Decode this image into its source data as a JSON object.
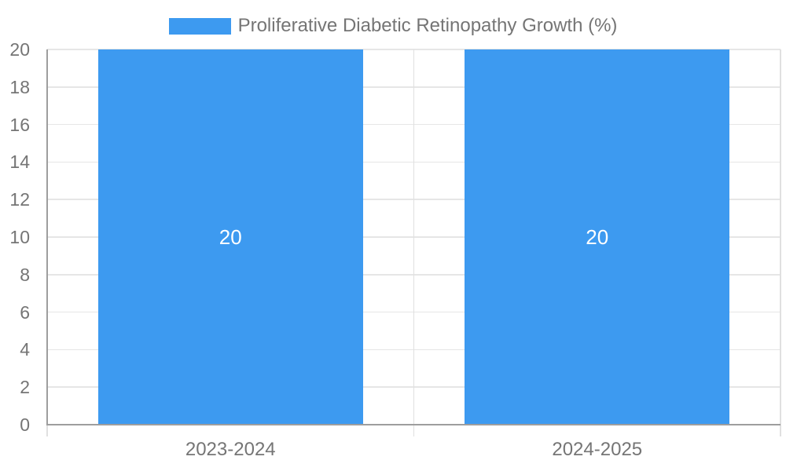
{
  "chart_data": {
    "type": "bar",
    "title": "Proliferative Diabetic Retinopathy Growth (%)",
    "legend": {
      "position": "top-center",
      "entries": [
        {
          "label": "Proliferative Diabetic Retinopathy Growth (%)",
          "color": "#3d9af0"
        }
      ]
    },
    "categories": [
      "2023-2024",
      "2024-2025"
    ],
    "series": [
      {
        "name": "Proliferative Diabetic Retinopathy Growth (%)",
        "values": [
          20,
          20
        ]
      }
    ],
    "data_labels": [
      "20",
      "20"
    ],
    "xlabel": "",
    "ylabel": "",
    "ylim": [
      0,
      20
    ],
    "yticks": [
      0,
      2,
      4,
      6,
      8,
      10,
      12,
      14,
      16,
      18,
      20
    ],
    "grid": true,
    "colors": {
      "bar": "#3d9af0",
      "gridline": "#e6e6e6",
      "category_divider": "#e0e0e0",
      "axis_line": "#9e9e9e",
      "tick_label_text": "#757575",
      "legend_text": "#757575",
      "data_label_text": "#ffffff"
    }
  }
}
